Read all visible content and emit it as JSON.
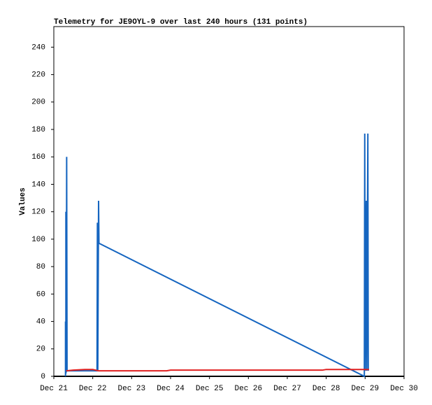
{
  "chart_data": {
    "type": "line",
    "title": "Telemetry for JE9OYL-9 over last 240 hours (131 points)",
    "y_label": "Values",
    "xlim": [
      21,
      30
    ],
    "xticks": [
      {
        "value": 21,
        "label": "Dec 21"
      },
      {
        "value": 22,
        "label": "Dec 22"
      },
      {
        "value": 23,
        "label": "Dec 23"
      },
      {
        "value": 24,
        "label": "Dec 24"
      },
      {
        "value": 25,
        "label": "Dec 25"
      },
      {
        "value": 26,
        "label": "Dec 26"
      },
      {
        "value": 27,
        "label": "Dec 27"
      },
      {
        "value": 28,
        "label": "Dec 28"
      },
      {
        "value": 29,
        "label": "Dec 29"
      },
      {
        "value": 30,
        "label": "Dec 30"
      }
    ],
    "ylim": [
      0,
      255
    ],
    "yticks": [
      0,
      20,
      40,
      60,
      80,
      100,
      120,
      140,
      160,
      180,
      200,
      220,
      240
    ],
    "grid": false,
    "series": [
      {
        "color": "#1565c0",
        "x": [
          21.3,
          21.3,
          21.31,
          21.31,
          21.32,
          21.33,
          21.34,
          22.11,
          22.12,
          22.13,
          22.15,
          22.16,
          28.98,
          28.99,
          29.0,
          29.03,
          29.04,
          29.07,
          29.08
        ],
        "values": [
          0,
          40,
          2,
          120,
          3,
          160,
          4,
          4,
          112,
          4,
          128,
          97,
          0,
          177,
          4,
          128,
          4,
          177,
          4
        ]
      },
      {
        "color": "#e02020",
        "x": [
          21.32,
          21.5,
          21.8,
          22.0,
          22.15,
          23.0,
          23.9,
          24.0,
          26.0,
          27.9,
          28.0,
          29.1
        ],
        "values": [
          4,
          4.5,
          5,
          5,
          4,
          4,
          4,
          4.5,
          4.5,
          4.5,
          5,
          5
        ]
      }
    ]
  }
}
